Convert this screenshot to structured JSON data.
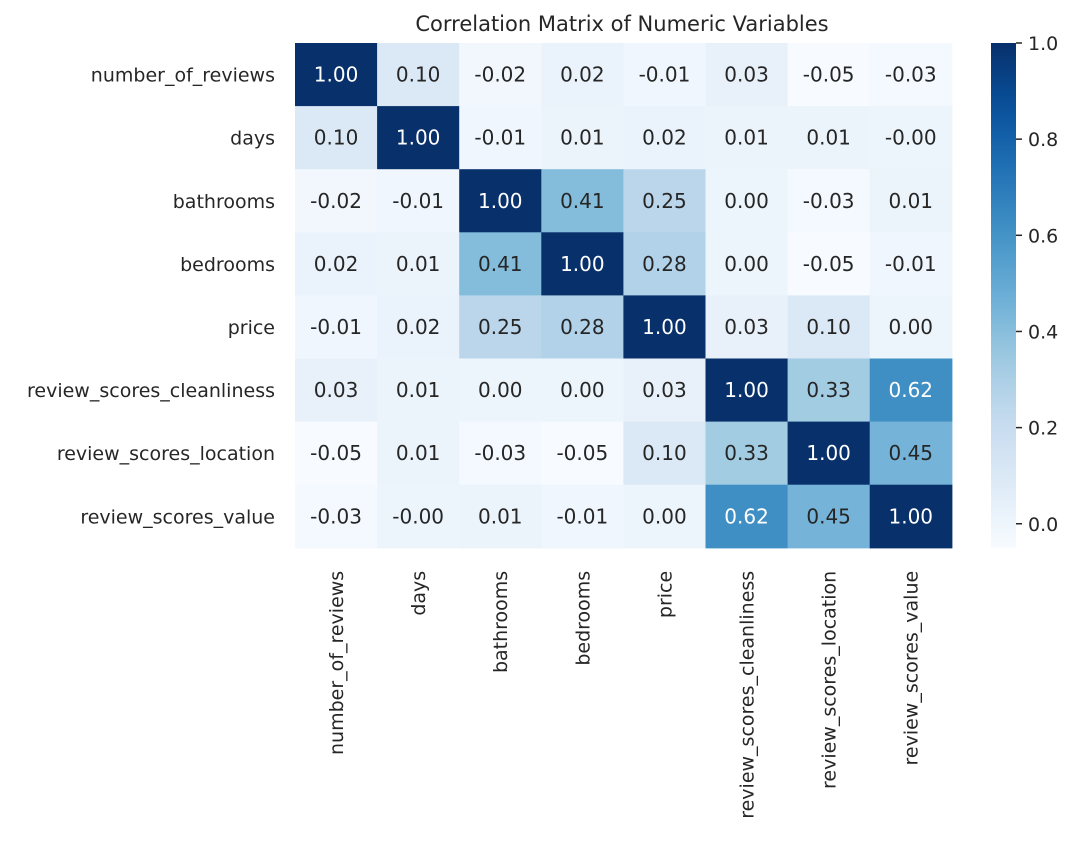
{
  "chart_data": {
    "type": "heatmap",
    "title": "Correlation Matrix of Numeric Variables",
    "rows": [
      "number_of_reviews",
      "days",
      "bathrooms",
      "bedrooms",
      "price",
      "review_scores_cleanliness",
      "review_scores_location",
      "review_scores_value"
    ],
    "columns": [
      "number_of_reviews",
      "days",
      "bathrooms",
      "bedrooms",
      "price",
      "review_scores_cleanliness",
      "review_scores_location",
      "review_scores_value"
    ],
    "values": [
      [
        1.0,
        0.1,
        -0.02,
        0.02,
        -0.01,
        0.03,
        -0.05,
        -0.03
      ],
      [
        0.1,
        1.0,
        -0.01,
        0.01,
        0.02,
        0.01,
        0.01,
        -0.0
      ],
      [
        -0.02,
        -0.01,
        1.0,
        0.41,
        0.25,
        0.0,
        -0.03,
        0.01
      ],
      [
        0.02,
        0.01,
        0.41,
        1.0,
        0.28,
        0.0,
        -0.05,
        -0.01
      ],
      [
        -0.01,
        0.02,
        0.25,
        0.28,
        1.0,
        0.03,
        0.1,
        0.0
      ],
      [
        0.03,
        0.01,
        0.0,
        0.0,
        0.03,
        1.0,
        0.33,
        0.62
      ],
      [
        -0.05,
        0.01,
        -0.03,
        -0.05,
        0.1,
        0.33,
        1.0,
        0.45
      ],
      [
        -0.03,
        -0.0,
        0.01,
        -0.01,
        0.0,
        0.62,
        0.45,
        1.0
      ]
    ],
    "annotations": [
      [
        "1.00",
        "0.10",
        "-0.02",
        "0.02",
        "-0.01",
        "0.03",
        "-0.05",
        "-0.03"
      ],
      [
        "0.10",
        "1.00",
        "-0.01",
        "0.01",
        "0.02",
        "0.01",
        "0.01",
        "-0.00"
      ],
      [
        "-0.02",
        "-0.01",
        "1.00",
        "0.41",
        "0.25",
        "0.00",
        "-0.03",
        "0.01"
      ],
      [
        "0.02",
        "0.01",
        "0.41",
        "1.00",
        "0.28",
        "0.00",
        "-0.05",
        "-0.01"
      ],
      [
        "-0.01",
        "0.02",
        "0.25",
        "0.28",
        "1.00",
        "0.03",
        "0.10",
        "0.00"
      ],
      [
        "0.03",
        "0.01",
        "0.00",
        "0.00",
        "0.03",
        "1.00",
        "0.33",
        "0.62"
      ],
      [
        "-0.05",
        "0.01",
        "-0.03",
        "-0.05",
        "0.10",
        "0.33",
        "1.00",
        "0.45"
      ],
      [
        "-0.03",
        "-0.00",
        "0.01",
        "-0.01",
        "0.00",
        "0.62",
        "0.45",
        "1.00"
      ]
    ],
    "colormap": "Blues",
    "vmin": -0.05,
    "vmax": 1.0,
    "colorbar": {
      "ticks": [
        0.0,
        0.2,
        0.4,
        0.6,
        0.8,
        1.0
      ],
      "tick_labels": [
        "0.0",
        "0.2",
        "0.4",
        "0.6",
        "0.8",
        "1.0"
      ],
      "position": "right"
    },
    "grid": false,
    "colors": {
      "low": "#f7fbff",
      "high": "#08306b",
      "text_dark": "#262626",
      "text_light": "#ffffff"
    }
  }
}
